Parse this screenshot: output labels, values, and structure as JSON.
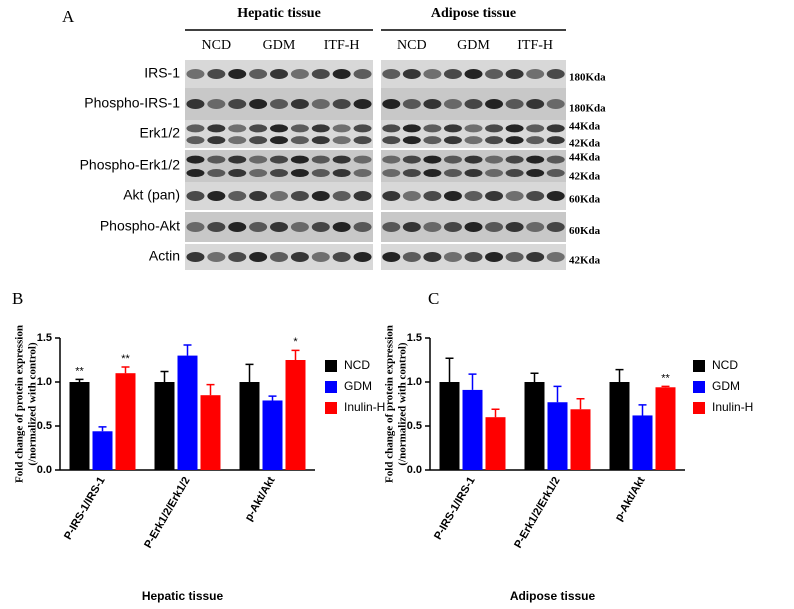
{
  "blot": {
    "panel": "A",
    "tissues": [
      "Hepatic tissue",
      "Adipose tissue"
    ],
    "groups": [
      "NCD",
      "GDM",
      "ITF-H"
    ],
    "rows": [
      {
        "label": "IRS-1",
        "sizes": [
          "180Kda"
        ]
      },
      {
        "label": "Phospho-IRS-1",
        "sizes": [
          "180Kda"
        ]
      },
      {
        "label": "Erk1/2",
        "sizes": [
          "44Kda",
          "42Kda"
        ]
      },
      {
        "label": "Phospho-Erk1/2",
        "sizes": [
          "44Kda",
          "42Kda"
        ]
      },
      {
        "label": "Akt (pan)",
        "sizes": [
          "60Kda"
        ]
      },
      {
        "label": "Phospho-Akt",
        "sizes": [
          "60Kda"
        ]
      },
      {
        "label": "Actin",
        "sizes": [
          "42Kda"
        ]
      }
    ]
  },
  "chart_data": [
    {
      "type": "bar",
      "panel": "B",
      "y_label": [
        "Fold change of protein expression",
        "(/normalized with control)"
      ],
      "x_label": "Hepatic tissue",
      "categories": [
        "P-IRS-1/IRS-1",
        "P-Erk1/2/Erk1/2",
        "p-Akt/Akt"
      ],
      "series": [
        {
          "name": "NCD",
          "color": "#000000",
          "values": [
            1.0,
            1.0,
            1.0
          ],
          "errors": [
            0.03,
            0.12,
            0.2
          ],
          "annotations": [
            "**",
            null,
            null
          ]
        },
        {
          "name": "GDM",
          "color": "#0000ff",
          "values": [
            0.44,
            1.3,
            0.79
          ],
          "errors": [
            0.05,
            0.12,
            0.05
          ],
          "annotations": [
            null,
            null,
            null
          ]
        },
        {
          "name": "Inulin-H",
          "color": "#ff0000",
          "values": [
            1.1,
            0.85,
            1.25
          ],
          "errors": [
            0.07,
            0.12,
            0.11
          ],
          "annotations": [
            "**",
            null,
            "*"
          ]
        }
      ],
      "ylim": [
        0,
        1.5
      ],
      "yticks": [
        {
          "value": 0,
          "label": "0.0"
        },
        0.5,
        {
          "value": 1,
          "label": "1.0"
        },
        1.5
      ],
      "legend": "right"
    },
    {
      "type": "bar",
      "panel": "C",
      "y_label": [
        "Fold change of protein expression",
        "(/normalized with control)"
      ],
      "x_label": "Adipose tissue",
      "categories": [
        "P-IRS-1/IRS-1",
        "P-Erk1/2/Erk1/2",
        "p-Akt/Akt"
      ],
      "series": [
        {
          "name": "NCD",
          "color": "#000000",
          "values": [
            1.0,
            1.0,
            1.0
          ],
          "errors": [
            0.27,
            0.1,
            0.14
          ],
          "annotations": [
            null,
            null,
            null
          ]
        },
        {
          "name": "GDM",
          "color": "#0000ff",
          "values": [
            0.91,
            0.77,
            0.62
          ],
          "errors": [
            0.18,
            0.18,
            0.12
          ],
          "annotations": [
            null,
            null,
            null
          ]
        },
        {
          "name": "Inulin-H",
          "color": "#ff0000",
          "values": [
            0.6,
            0.69,
            0.94
          ],
          "errors": [
            0.09,
            0.12,
            0.01
          ],
          "annotations": [
            null,
            null,
            "**"
          ]
        }
      ],
      "ylim": [
        0,
        1.5
      ],
      "yticks": [
        {
          "value": 0,
          "label": "0.0"
        },
        0.5,
        {
          "value": 1,
          "label": "1.0"
        },
        1.5
      ],
      "legend": "right"
    }
  ]
}
